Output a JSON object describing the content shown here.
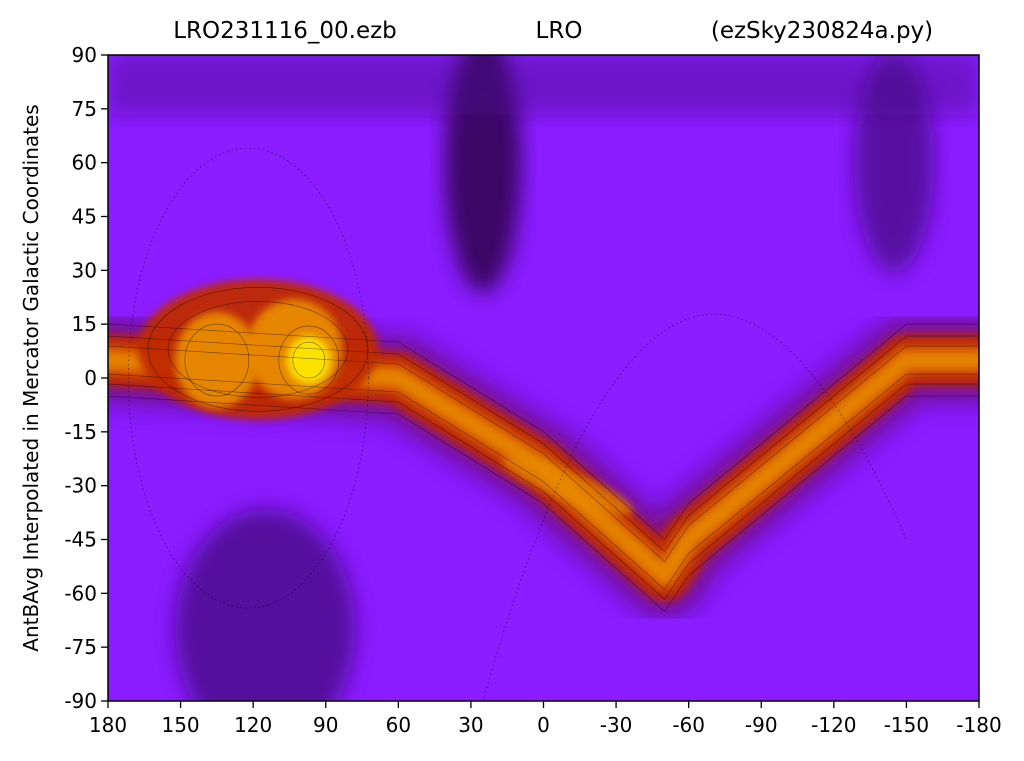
{
  "chart_data": {
    "type": "heatmap",
    "title_parts": [
      "LRO231116_00.ezb",
      "LRO",
      "(ezSky230824a.py)"
    ],
    "xlabel": "",
    "ylabel": "AntBAvg Interpolated in Mercator Galactic Coordinates",
    "xlim": [
      180,
      -180
    ],
    "ylim": [
      -90,
      90
    ],
    "x_ticks": [
      180,
      150,
      120,
      90,
      60,
      30,
      0,
      -30,
      -60,
      -90,
      -120,
      -150,
      -180
    ],
    "y_ticks": [
      90,
      75,
      60,
      45,
      30,
      15,
      0,
      -15,
      -30,
      -45,
      -60,
      -75,
      -90
    ],
    "grid": false,
    "colormap": "gnuplot",
    "colors": {
      "background_low": "#8a1cff",
      "background_dark": "#4b0a8c",
      "darkest": "#240033",
      "band_red": "#c02a00",
      "band_orange": "#e88a00",
      "band_yellow": "#ffe800"
    },
    "features": [
      {
        "name": "galactic-plane-band",
        "path": [
          [
            180,
            5
          ],
          [
            60,
            0
          ],
          [
            0,
            -25
          ],
          [
            -50,
            -55
          ],
          [
            -60,
            -45
          ],
          [
            -150,
            5
          ],
          [
            -180,
            5
          ]
        ]
      },
      {
        "name": "bright-peak-left",
        "x": 135,
        "y": 5
      },
      {
        "name": "brightest-peak",
        "x": 97,
        "y": 5
      },
      {
        "name": "dark-region-top",
        "x": 25,
        "y": 60
      },
      {
        "name": "dark-region-bottom-left",
        "x": 115,
        "y": -70
      }
    ]
  }
}
